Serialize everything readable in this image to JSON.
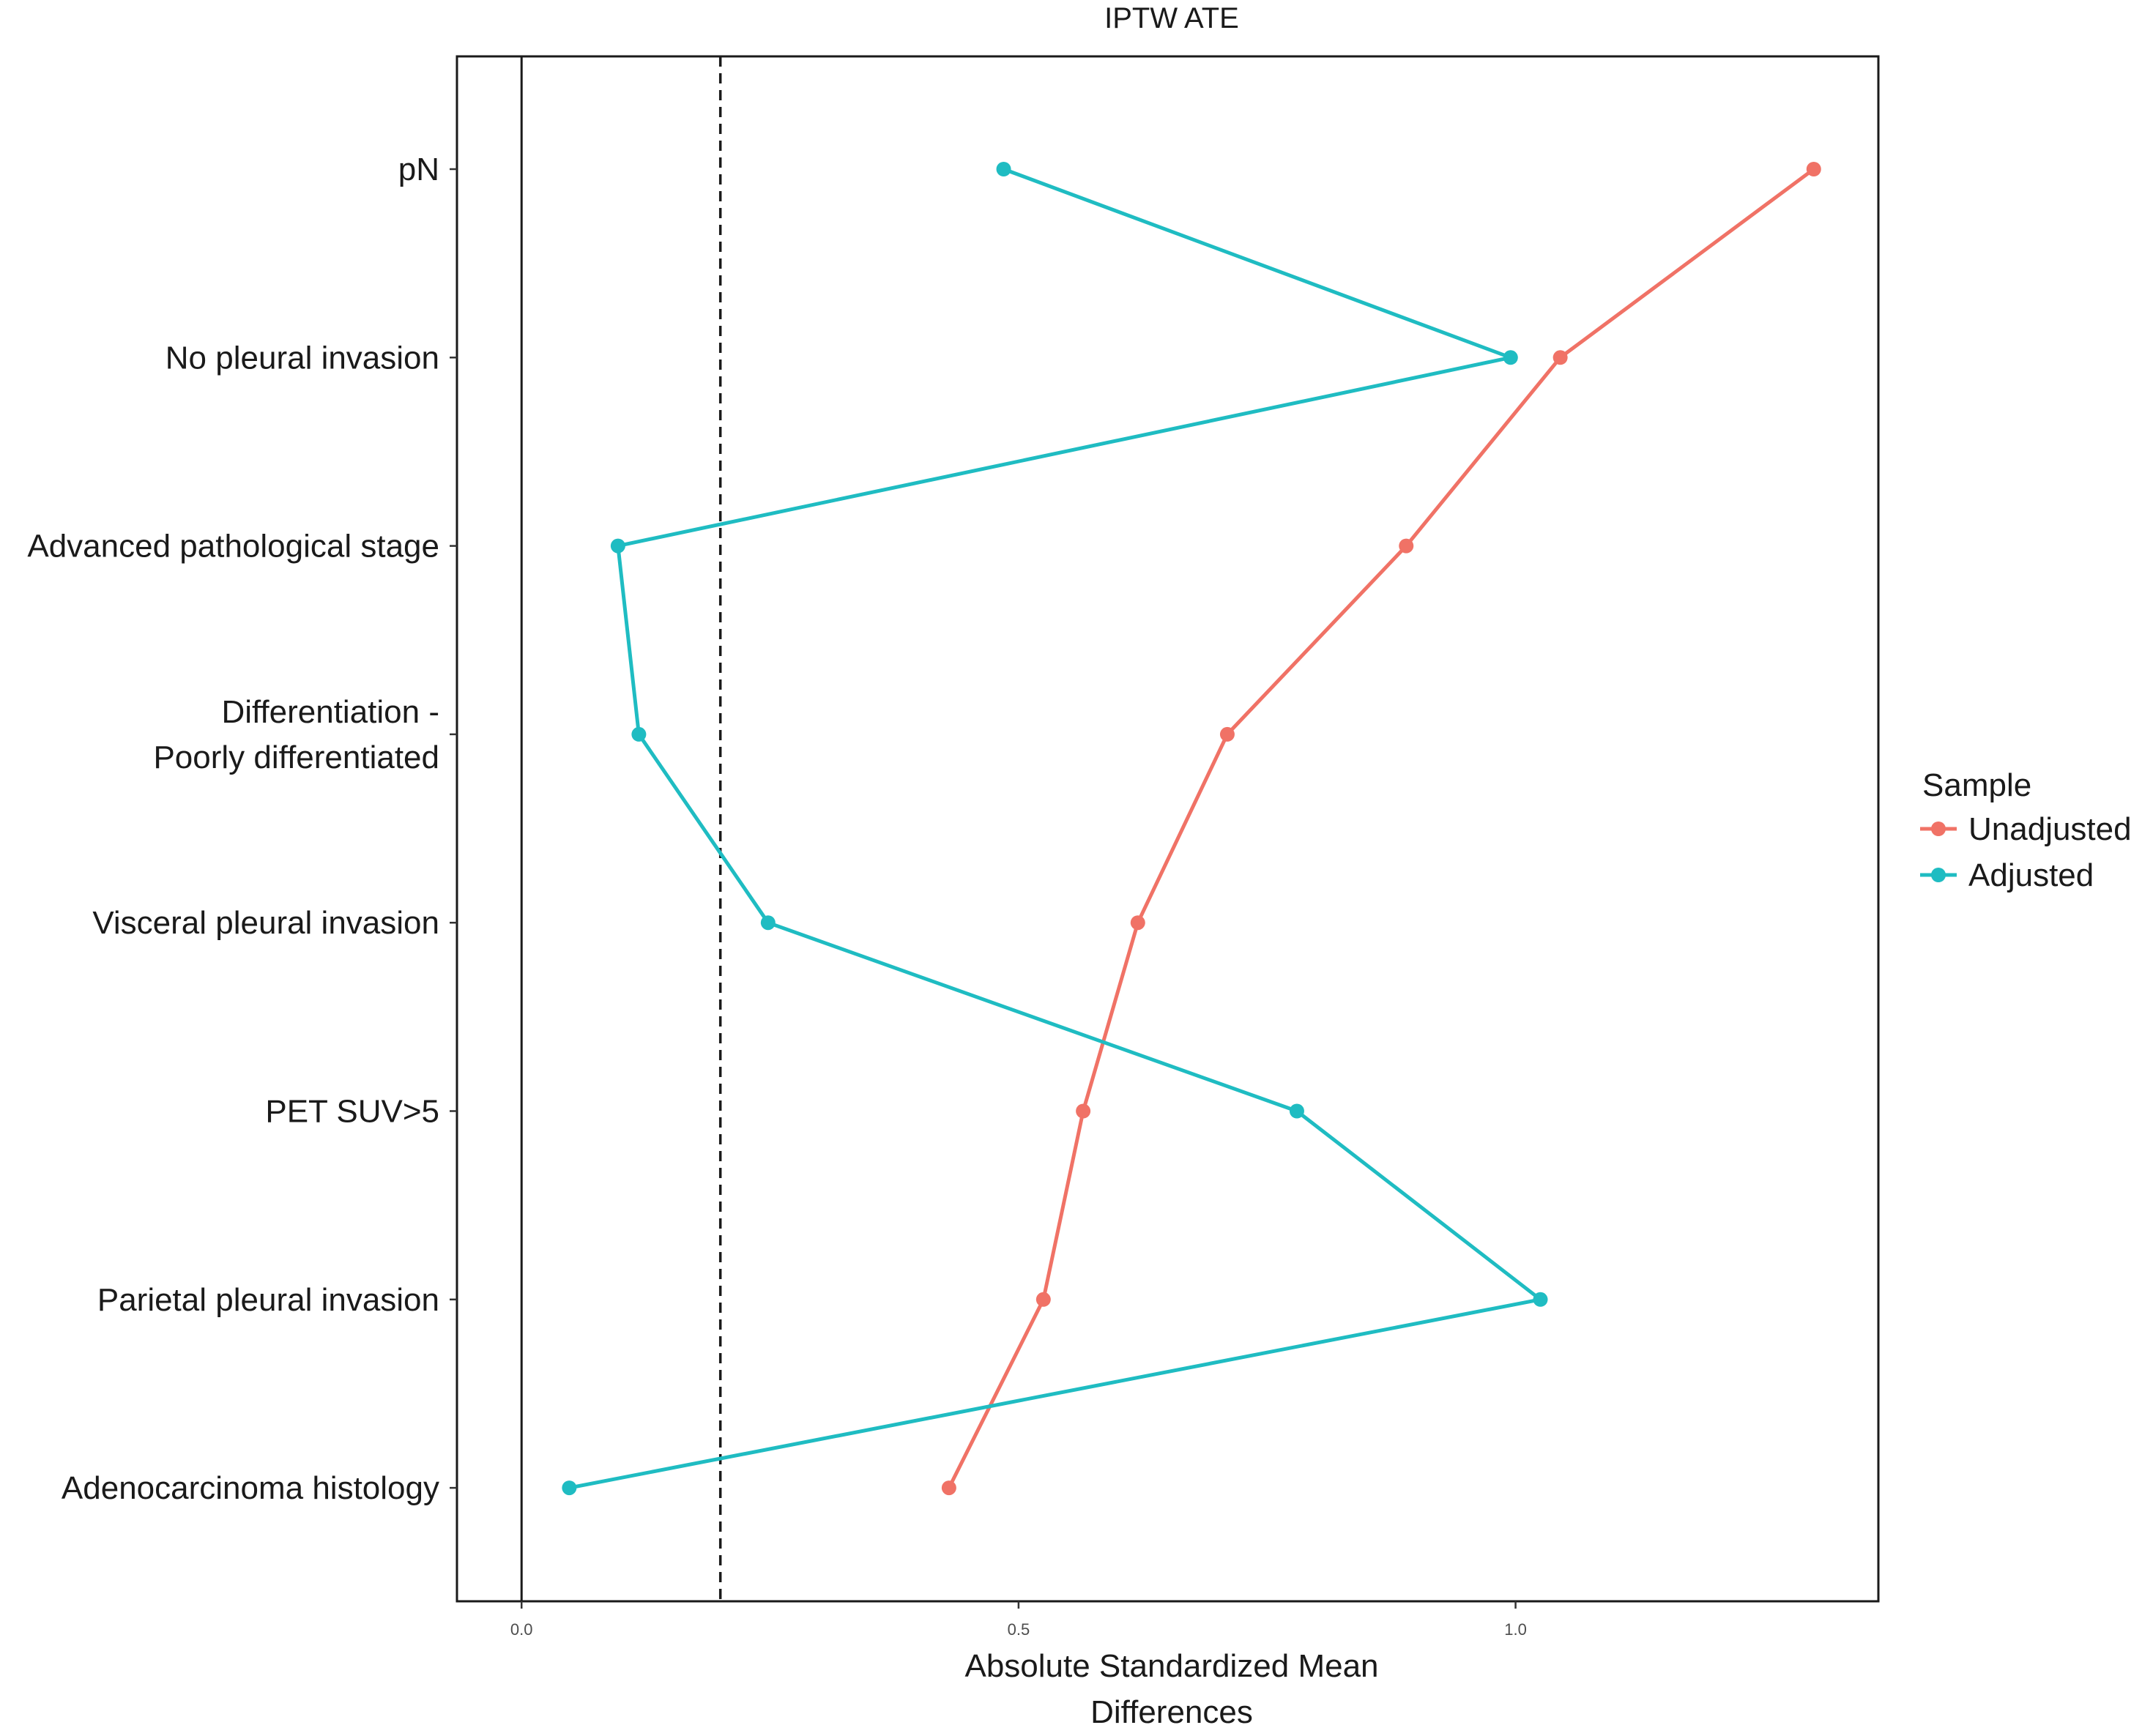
{
  "chart_data": {
    "type": "line",
    "title": "IPTW ATE",
    "xlabel": "Absolute Standardized Mean Differences",
    "ylabel": "",
    "xlim": [
      -0.065,
      1.365
    ],
    "x_ticks": [
      "0.0",
      "0.5",
      "1.0"
    ],
    "x_tick_values": [
      0,
      0.5,
      1.0
    ],
    "reference_lines": {
      "solid_x": 0,
      "dashed_x": 0.2
    },
    "categories": [
      "pN",
      "No pleural invasion",
      "Advanced pathological stage",
      "Differentiation -\nPoorly differentiated",
      "Visceral pleural invasion",
      "PET SUV>5",
      "Parietal pleural invasion",
      "Adenocarcinoma histology"
    ],
    "series": [
      {
        "name": "Unadjusted",
        "color": "#F07266",
        "values": [
          1.3,
          1.045,
          0.89,
          0.71,
          0.62,
          0.565,
          0.525,
          0.43
        ]
      },
      {
        "name": "Adjusted",
        "color": "#1FBCC2",
        "values": [
          0.485,
          0.995,
          0.097,
          0.118,
          0.248,
          0.78,
          1.025,
          0.048
        ]
      }
    ],
    "grid": false,
    "legend": {
      "title": "Sample",
      "placement": "right"
    }
  }
}
